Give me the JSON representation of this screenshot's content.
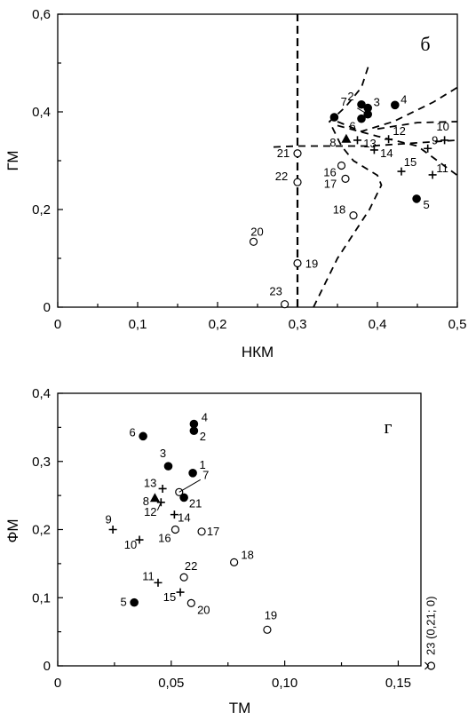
{
  "chart_data": [
    {
      "type": "scatter",
      "panel_label": "б",
      "xlabel": "НКМ",
      "ylabel": "ГМ",
      "xlim": [
        0,
        0.5
      ],
      "ylim": [
        0,
        0.6
      ],
      "x_ticks": [
        "0",
        "0,1",
        "0,2",
        "0,3",
        "0,4",
        "0,5"
      ],
      "y_ticks": [
        "0",
        "0,2",
        "0,4",
        "0,6"
      ],
      "grid": false,
      "points": [
        {
          "label": "2",
          "marker": "filled-circle",
          "x": 0.38,
          "y": 0.415
        },
        {
          "label": "3",
          "marker": "filled-circle",
          "x": 0.388,
          "y": 0.408
        },
        {
          "label": "4",
          "marker": "filled-circle",
          "x": 0.422,
          "y": 0.414
        },
        {
          "label": "6",
          "marker": "filled-circle",
          "x": 0.38,
          "y": 0.386
        },
        {
          "label": "7",
          "marker": "filled-circle",
          "x": 0.388,
          "y": 0.395
        },
        {
          "label": "",
          "marker": "filled-circle",
          "x": 0.346,
          "y": 0.389
        },
        {
          "label": "5",
          "marker": "filled-circle",
          "x": 0.449,
          "y": 0.222
        },
        {
          "label": "8",
          "marker": "triangle",
          "x": 0.361,
          "y": 0.344
        },
        {
          "label": "13",
          "marker": "plus",
          "x": 0.375,
          "y": 0.342
        },
        {
          "label": "12",
          "marker": "plus",
          "x": 0.414,
          "y": 0.344
        },
        {
          "label": "10",
          "marker": "plus",
          "x": 0.484,
          "y": 0.342
        },
        {
          "label": "9",
          "marker": "plus",
          "x": 0.463,
          "y": 0.325
        },
        {
          "label": "14",
          "marker": "plus",
          "x": 0.396,
          "y": 0.322
        },
        {
          "label": "15",
          "marker": "plus",
          "x": 0.43,
          "y": 0.278
        },
        {
          "label": "11",
          "marker": "plus",
          "x": 0.469,
          "y": 0.271
        },
        {
          "label": "16",
          "marker": "open-circle",
          "x": 0.355,
          "y": 0.29
        },
        {
          "label": "17",
          "marker": "open-circle",
          "x": 0.36,
          "y": 0.263
        },
        {
          "label": "18",
          "marker": "open-circle",
          "x": 0.37,
          "y": 0.188
        },
        {
          "label": "21",
          "marker": "open-circle",
          "x": 0.3,
          "y": 0.315
        },
        {
          "label": "22",
          "marker": "open-circle",
          "x": 0.3,
          "y": 0.256
        },
        {
          "label": "20",
          "marker": "open-circle",
          "x": 0.245,
          "y": 0.134
        },
        {
          "label": "19",
          "marker": "open-circle",
          "x": 0.3,
          "y": 0.09
        },
        {
          "label": "23",
          "marker": "open-circle",
          "x": 0.284,
          "y": 0.006
        }
      ],
      "dividers": [
        {
          "kind": "thick",
          "points": [
            [
              0.3,
              0
            ],
            [
              0.3,
              0.6
            ]
          ]
        },
        {
          "kind": "thin",
          "points": [
            [
              0.27,
              0.328
            ],
            [
              0.3,
              0.33
            ],
            [
              0.39,
              0.33
            ],
            [
              0.5,
              0.342
            ]
          ]
        },
        {
          "kind": "thin",
          "points": [
            [
              0.4,
              0.365
            ],
            [
              0.45,
              0.378
            ],
            [
              0.5,
              0.38
            ]
          ]
        },
        {
          "kind": "thin",
          "points": [
            [
              0.35,
              0.372
            ],
            [
              0.4,
              0.35
            ],
            [
              0.45,
              0.33
            ],
            [
              0.5,
              0.27
            ]
          ]
        },
        {
          "kind": "thin",
          "points": [
            [
              0.32,
              0
            ],
            [
              0.35,
              0.1
            ],
            [
              0.39,
              0.2
            ],
            [
              0.405,
              0.25
            ],
            [
              0.4,
              0.27
            ],
            [
              0.37,
              0.3
            ],
            [
              0.355,
              0.33
            ],
            [
              0.34,
              0.38
            ],
            [
              0.36,
              0.41
            ],
            [
              0.38,
              0.45
            ],
            [
              0.39,
              0.5
            ]
          ]
        },
        {
          "kind": "thin",
          "points": [
            [
              0.35,
              0.38
            ],
            [
              0.38,
              0.36
            ],
            [
              0.42,
              0.38
            ],
            [
              0.47,
              0.42
            ],
            [
              0.5,
              0.45
            ]
          ]
        }
      ]
    },
    {
      "type": "scatter",
      "panel_label": "г",
      "xlabel": "ТМ",
      "ylabel": "ФМ",
      "xlim": [
        0,
        0.16
      ],
      "ylim": [
        0,
        0.4
      ],
      "x_ticks": [
        "0",
        "0,05",
        "0,10",
        "0,15"
      ],
      "y_ticks": [
        "0",
        "0,1",
        "0,2",
        "0,3",
        "0,4"
      ],
      "grid": false,
      "points": [
        {
          "label": "1",
          "marker": "filled-circle",
          "x": 0.0595,
          "y": 0.283
        },
        {
          "label": "2",
          "marker": "filled-circle",
          "x": 0.06,
          "y": 0.345
        },
        {
          "label": "3",
          "marker": "filled-circle",
          "x": 0.0487,
          "y": 0.293
        },
        {
          "label": "4",
          "marker": "filled-circle",
          "x": 0.06,
          "y": 0.355
        },
        {
          "label": "5",
          "marker": "filled-circle",
          "x": 0.0337,
          "y": 0.093
        },
        {
          "label": "6",
          "marker": "filled-circle",
          "x": 0.0376,
          "y": 0.337
        },
        {
          "label": "21",
          "marker": "filled-circle",
          "x": 0.0556,
          "y": 0.247
        },
        {
          "label": "7",
          "marker": "open-circle",
          "x": 0.0535,
          "y": 0.255
        },
        {
          "label": "8",
          "marker": "triangle",
          "x": 0.0428,
          "y": 0.246
        },
        {
          "label": "12",
          "marker": "plus",
          "x": 0.0455,
          "y": 0.24
        },
        {
          "label": "13",
          "marker": "plus",
          "x": 0.0462,
          "y": 0.26
        },
        {
          "label": "14",
          "marker": "plus",
          "x": 0.0514,
          "y": 0.222
        },
        {
          "label": "9",
          "marker": "plus",
          "x": 0.0243,
          "y": 0.2
        },
        {
          "label": "10",
          "marker": "plus",
          "x": 0.036,
          "y": 0.185
        },
        {
          "label": "11",
          "marker": "plus",
          "x": 0.0442,
          "y": 0.122
        },
        {
          "label": "15",
          "marker": "plus",
          "x": 0.054,
          "y": 0.108
        },
        {
          "label": "16",
          "marker": "open-circle",
          "x": 0.0518,
          "y": 0.2
        },
        {
          "label": "17",
          "marker": "open-circle",
          "x": 0.0634,
          "y": 0.197
        },
        {
          "label": "18",
          "marker": "open-circle",
          "x": 0.0777,
          "y": 0.152
        },
        {
          "label": "22",
          "marker": "open-circle",
          "x": 0.0556,
          "y": 0.13
        },
        {
          "label": "20",
          "marker": "open-circle",
          "x": 0.0588,
          "y": 0.092
        },
        {
          "label": "19",
          "marker": "open-circle",
          "x": 0.0923,
          "y": 0.053
        },
        {
          "label": "23 (0,21; 0)",
          "marker": "open-circle",
          "x": 0.1645,
          "y": 0.0,
          "offscale": true
        }
      ]
    }
  ]
}
